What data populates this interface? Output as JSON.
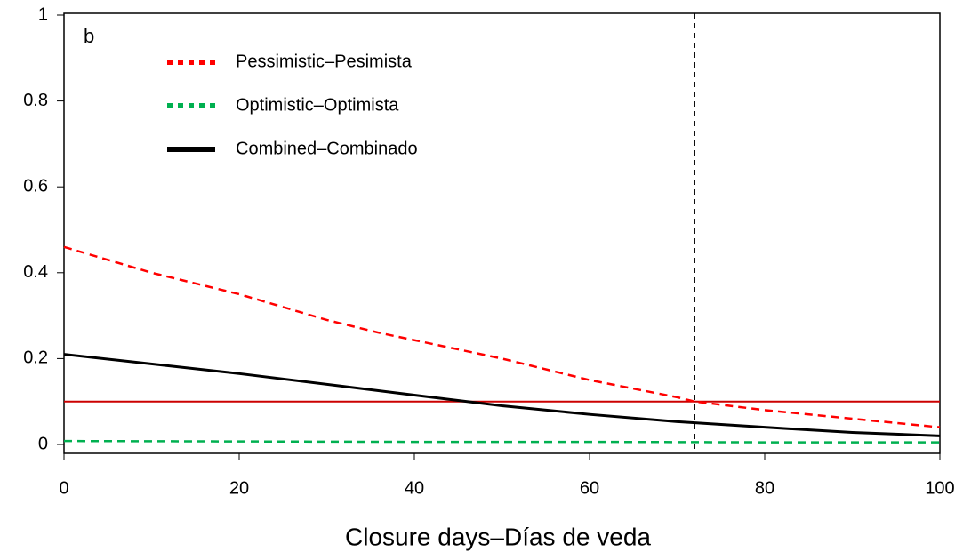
{
  "chart_data": {
    "type": "line",
    "annotation": "b",
    "x_label": "Closure days–Días de veda",
    "xlim": [
      0,
      100
    ],
    "xticks": [
      0,
      20,
      40,
      60,
      80,
      100
    ],
    "ylim": [
      0,
      1
    ],
    "yticks": [
      0,
      0.2,
      0.4,
      0.6,
      0.8,
      1
    ],
    "hline": {
      "value": 0.1,
      "color": "#cc0000"
    },
    "vline": {
      "value": 72,
      "color": "#000000"
    },
    "series": [
      {
        "name": "Pessimistic–Pesimista",
        "color": "#ff0000",
        "dash": true,
        "x": [
          0,
          10,
          20,
          30,
          36,
          50,
          60,
          70,
          72,
          80,
          90,
          100
        ],
        "values": [
          0.46,
          0.4,
          0.35,
          0.29,
          0.26,
          0.2,
          0.15,
          0.11,
          0.1,
          0.08,
          0.06,
          0.04
        ]
      },
      {
        "name": "Optimistic–Optimista",
        "color": "#00b050",
        "dash": true,
        "x": [
          0,
          20,
          40,
          60,
          80,
          100
        ],
        "values": [
          0.008,
          0.007,
          0.006,
          0.006,
          0.005,
          0.005
        ]
      },
      {
        "name": "Combined–Combinado",
        "color": "#000000",
        "dash": false,
        "x": [
          0,
          20,
          40,
          50,
          60,
          70,
          80,
          90,
          100
        ],
        "values": [
          0.21,
          0.165,
          0.115,
          0.09,
          0.07,
          0.053,
          0.04,
          0.028,
          0.02
        ]
      }
    ]
  }
}
